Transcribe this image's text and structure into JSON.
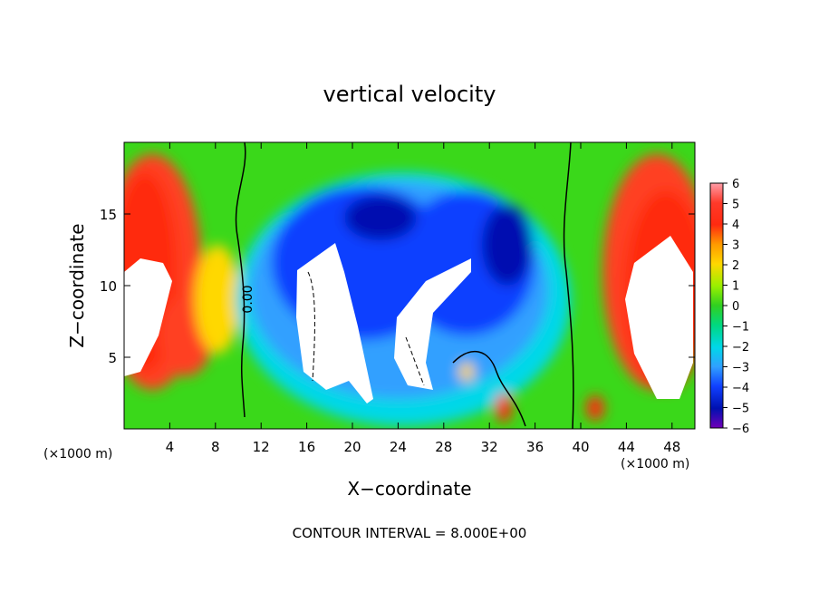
{
  "chart_data": {
    "type": "heatmap",
    "title": "vertical velocity",
    "xlabel": "X−coordinate",
    "ylabel": "Z−coordinate",
    "x_unit_left": "(×1000 m)",
    "x_unit_right": "(×1000 m)",
    "xlim": [
      0,
      50
    ],
    "ylim": [
      0,
      20
    ],
    "x_ticks": [
      4,
      8,
      12,
      16,
      20,
      24,
      28,
      32,
      36,
      40,
      44,
      48
    ],
    "y_ticks": [
      5,
      10,
      15
    ],
    "colorbar": {
      "ticks": [
        "6",
        "5",
        "4",
        "3",
        "2",
        "1",
        "0",
        "−1",
        "−2",
        "−3",
        "−4",
        "−5",
        "−6"
      ],
      "range": [
        -6,
        6
      ]
    },
    "contour_label": "0.00",
    "footer": "CONTOUR INTERVAL = 8.000E+00",
    "field_features": [
      {
        "x": 3.0,
        "z": 11.0,
        "value": 7
      },
      {
        "x": 5.0,
        "z": 6.0,
        "value": 4.5
      },
      {
        "x": 46.5,
        "z": 9.5,
        "value": 7
      },
      {
        "x": 19.5,
        "z": 7.5,
        "value": -8
      },
      {
        "x": 27.0,
        "z": 8.0,
        "value": -8
      },
      {
        "x": 24.0,
        "z": 13.0,
        "value": -4.5
      },
      {
        "x": 34.0,
        "z": 12.0,
        "value": -5
      },
      {
        "x": 14.0,
        "z": 11.0,
        "value": -3
      },
      {
        "x": 33.0,
        "z": 1.5,
        "value": 5
      },
      {
        "x": 41.0,
        "z": 1.5,
        "value": 5
      }
    ]
  }
}
